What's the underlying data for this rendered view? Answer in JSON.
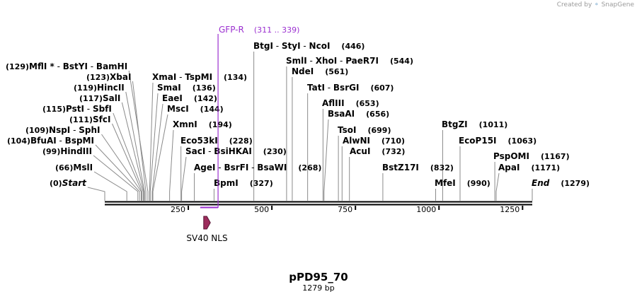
{
  "credit": {
    "prefix": "Created by",
    "brand": "SnapGene"
  },
  "plasmid": {
    "name": "pPD95_70",
    "length_label": "1279 bp",
    "length": 1279
  },
  "primer": {
    "name": "GFP-R",
    "range": "(311 .. 339)",
    "start": 311,
    "end": 339,
    "direction": "reverse",
    "color": "#9b30d0"
  },
  "feature": {
    "name": "SV40 NLS",
    "start": 296,
    "end": 316,
    "direction": "forward",
    "color": "#9c2c5c"
  },
  "axis": {
    "ticks": [
      250,
      500,
      750,
      1000,
      1250
    ]
  },
  "sites": [
    {
      "names": [
        "MflI *",
        "BstYI",
        "BamHI"
      ],
      "pos": 129
    },
    {
      "names": [
        "XbaI"
      ],
      "pos": 123
    },
    {
      "names": [
        "HincII"
      ],
      "pos": 119
    },
    {
      "names": [
        "SalI"
      ],
      "pos": 117
    },
    {
      "names": [
        "PstI",
        "SbfI"
      ],
      "pos": 115
    },
    {
      "names": [
        "SfcI"
      ],
      "pos": 111
    },
    {
      "names": [
        "NspI",
        "SphI"
      ],
      "pos": 109
    },
    {
      "names": [
        "BfuAI",
        "BspMI"
      ],
      "pos": 104
    },
    {
      "names": [
        "HindIII"
      ],
      "pos": 99
    },
    {
      "names": [
        "MslI"
      ],
      "pos": 66
    },
    {
      "names": [
        "Start"
      ],
      "pos": 0,
      "italic": true
    },
    {
      "names": [
        "XmaI",
        "TspMI"
      ],
      "pos": 134
    },
    {
      "names": [
        "SmaI"
      ],
      "pos": 136
    },
    {
      "names": [
        "EaeI"
      ],
      "pos": 142
    },
    {
      "names": [
        "MscI"
      ],
      "pos": 144
    },
    {
      "names": [
        "XmnI"
      ],
      "pos": 194
    },
    {
      "names": [
        "Eco53kI"
      ],
      "pos": 228
    },
    {
      "names": [
        "SacI",
        "BsiHKAI"
      ],
      "pos": 230
    },
    {
      "names": [
        "AgeI",
        "BsrFI",
        "BsaWI"
      ],
      "pos": 268
    },
    {
      "names": [
        "BpmI"
      ],
      "pos": 327
    },
    {
      "names": [
        "BtgI",
        "StyI",
        "NcoI"
      ],
      "pos": 446
    },
    {
      "names": [
        "SmlI",
        "XhoI",
        "PaeR7I"
      ],
      "pos": 544
    },
    {
      "names": [
        "NdeI"
      ],
      "pos": 561
    },
    {
      "names": [
        "TatI",
        "BsrGI"
      ],
      "pos": 607
    },
    {
      "names": [
        "AflIII"
      ],
      "pos": 653
    },
    {
      "names": [
        "BsaAI"
      ],
      "pos": 656
    },
    {
      "names": [
        "TsoI"
      ],
      "pos": 699
    },
    {
      "names": [
        "AlwNI"
      ],
      "pos": 710
    },
    {
      "names": [
        "AcuI"
      ],
      "pos": 732
    },
    {
      "names": [
        "BstZ17I"
      ],
      "pos": 832
    },
    {
      "names": [
        "MfeI"
      ],
      "pos": 990
    },
    {
      "names": [
        "BtgZI"
      ],
      "pos": 1011
    },
    {
      "names": [
        "EcoP15I"
      ],
      "pos": 1063
    },
    {
      "names": [
        "PspOMI"
      ],
      "pos": 1167
    },
    {
      "names": [
        "ApaI"
      ],
      "pos": 1171
    },
    {
      "names": [
        "End"
      ],
      "pos": 1279,
      "italic": true
    }
  ]
}
